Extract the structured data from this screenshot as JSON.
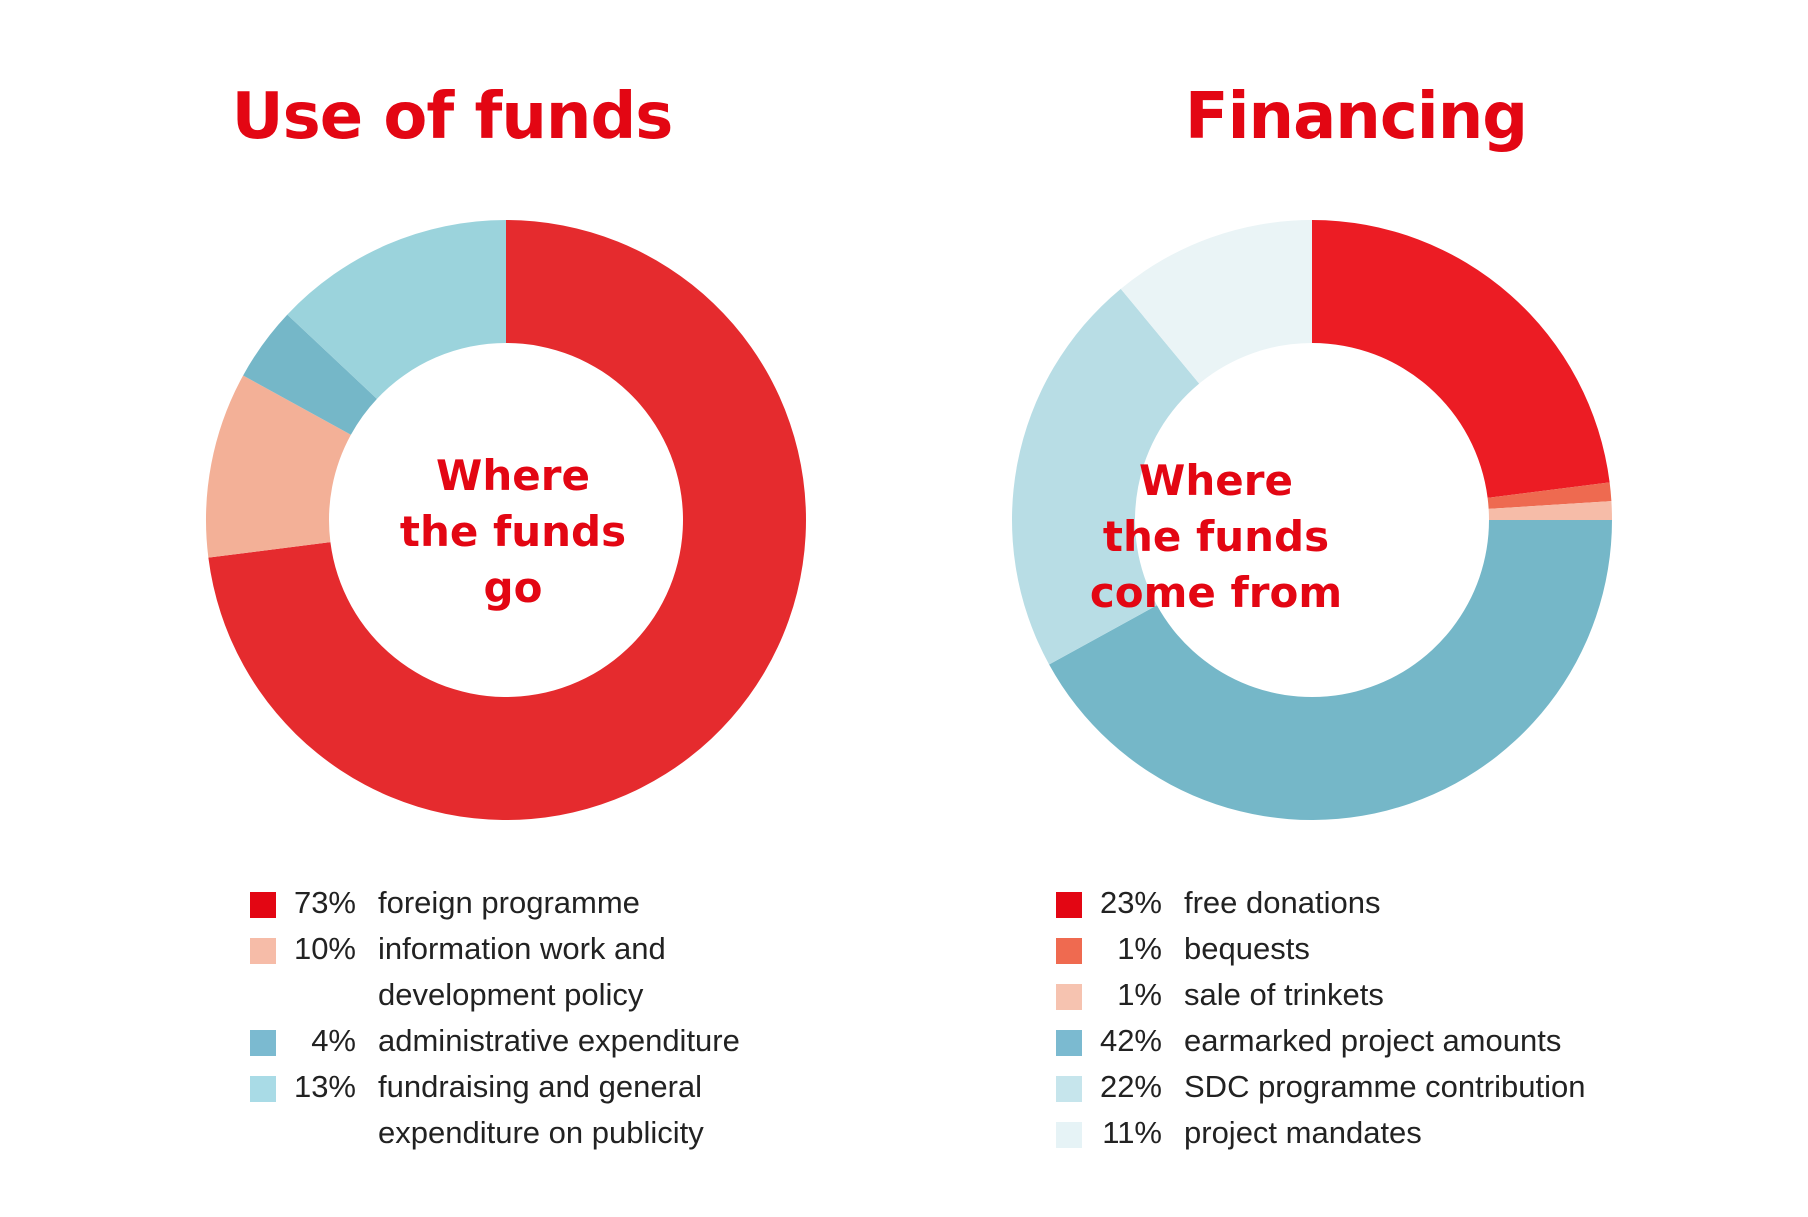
{
  "chart_data": [
    {
      "type": "pie",
      "title": "Use of funds",
      "center_label": [
        "Where",
        "the funds",
        "go"
      ],
      "inner_radius_ratio": 0.59,
      "start_angle": "12 o'clock, clockwise",
      "slices": [
        {
          "label": "foreign programme",
          "pct_label": "73%",
          "value": 73,
          "color": "#e52b2e"
        },
        {
          "label": "information work and development policy",
          "pct_label": "10%",
          "value": 10,
          "color": "#f3b097"
        },
        {
          "label": "administrative expenditure",
          "pct_label": "4%",
          "value": 4,
          "color": "#75b7c8"
        },
        {
          "label": "fundraising and general expenditure on publicity",
          "pct_label": "13%",
          "value": 13,
          "color": "#9bd3dc"
        }
      ],
      "legend": [
        {
          "pct": "73%",
          "label": "foreign programme",
          "color": "#e30613"
        },
        {
          "pct": "10%",
          "label": "information work and development policy",
          "color": "#f6bca8"
        },
        {
          "pct": "4%",
          "label": "administrative expenditure",
          "color": "#7bbad0"
        },
        {
          "pct": "13%",
          "label": "fundraising and general expenditure on publicity",
          "color": "#a9dbe6"
        }
      ]
    },
    {
      "type": "pie",
      "title": "Financing",
      "center_label": [
        "Where",
        "the funds",
        "come from"
      ],
      "inner_radius_ratio": 0.59,
      "start_angle": "12 o'clock, clockwise",
      "slices": [
        {
          "label": "free donations",
          "pct_label": "23%",
          "value": 23,
          "color": "#ec1c24"
        },
        {
          "label": "bequests",
          "pct_label": "1%",
          "value": 1,
          "color": "#ee6a50"
        },
        {
          "label": "sale of trinkets",
          "pct_label": "1%",
          "value": 1,
          "color": "#f6bca8"
        },
        {
          "label": "earmarked project amounts",
          "pct_label": "42%",
          "value": 42,
          "color": "#75b7c8"
        },
        {
          "label": "SDC programme contribution",
          "pct_label": "22%",
          "value": 22,
          "color": "#b8dde5"
        },
        {
          "label": "project mandates",
          "pct_label": "11%",
          "value": 11,
          "color": "#eaf4f6"
        }
      ],
      "legend": [
        {
          "pct": "23%",
          "label": "free donations",
          "color": "#e30613"
        },
        {
          "pct": "1%",
          "label": "bequests",
          "color": "#ef6a50"
        },
        {
          "pct": "1%",
          "label": "sale of trinkets",
          "color": "#f6c3b0"
        },
        {
          "pct": "42%",
          "label": "earmarked project amounts",
          "color": "#7bbad0"
        },
        {
          "pct": "22%",
          "label": "SDC programme contribution",
          "color": "#c6e5ec"
        },
        {
          "pct": "11%",
          "label": "project mandates",
          "color": "#e6f3f6"
        }
      ]
    }
  ]
}
